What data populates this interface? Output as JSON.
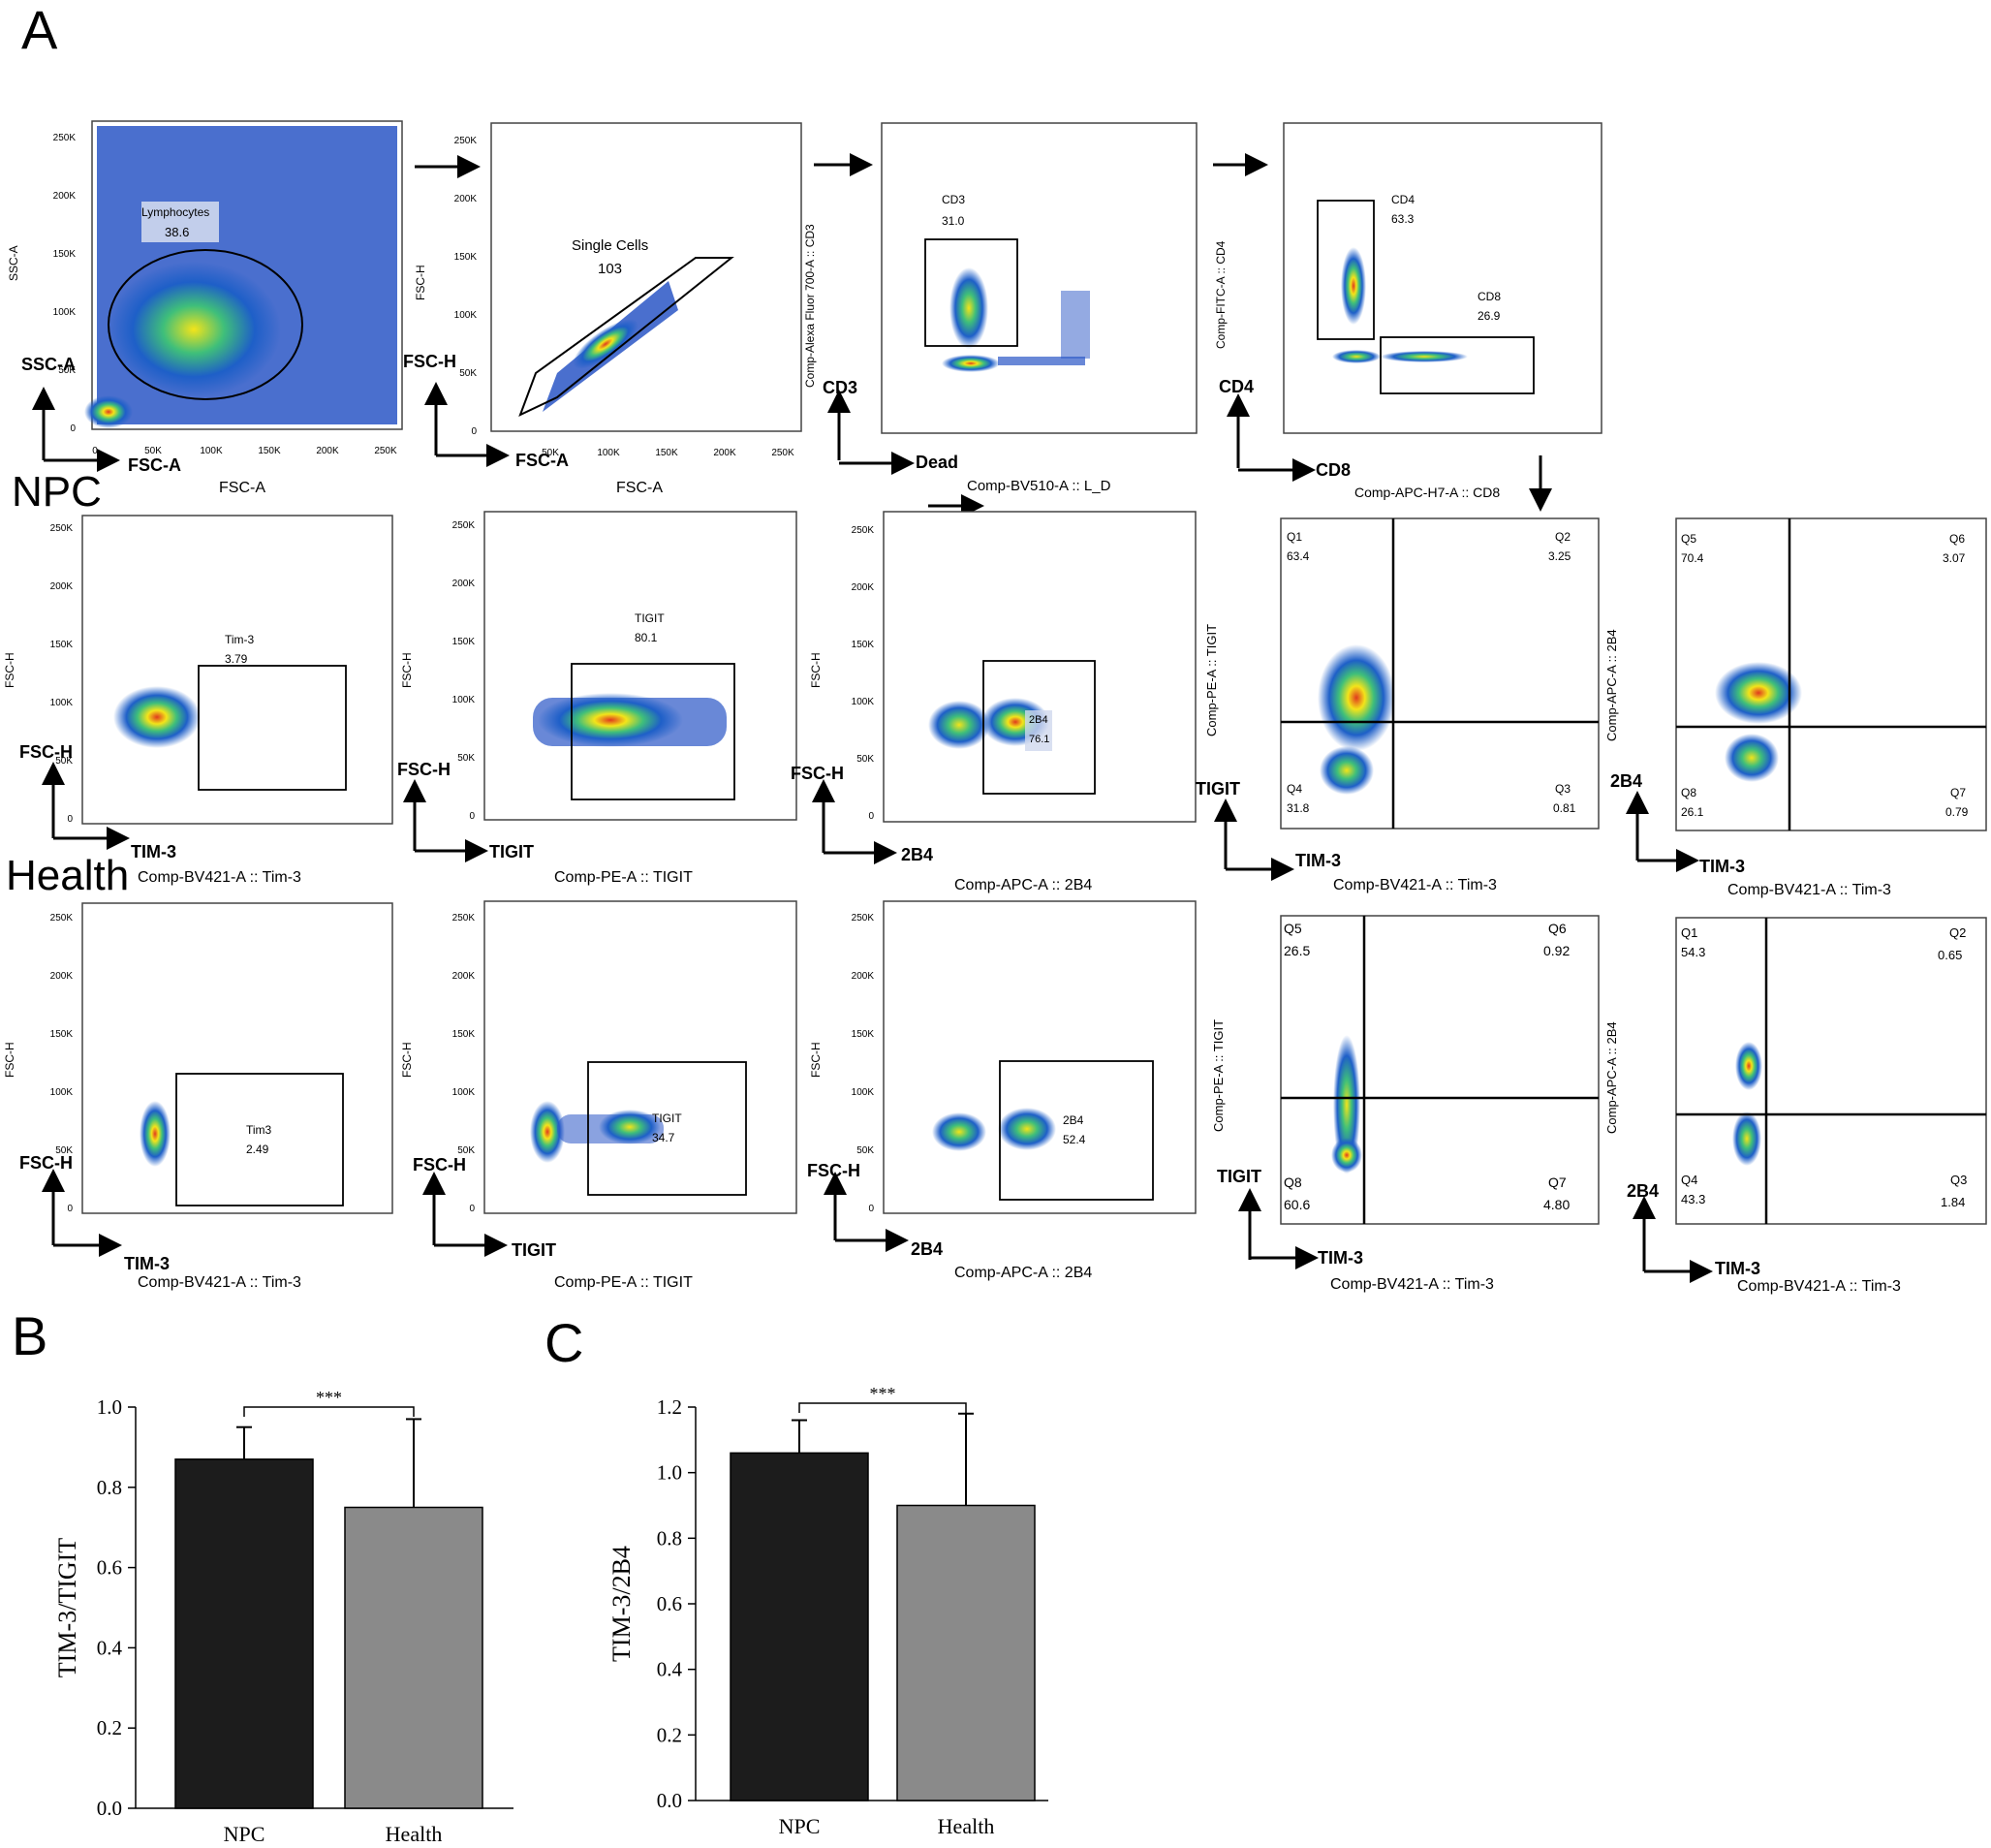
{
  "panel_letters": {
    "a": "A",
    "b": "B",
    "c": "C"
  },
  "row_labels": {
    "npc": "NPC",
    "health": "Health"
  },
  "gating": [
    {
      "title_left": "SSC-A",
      "xlabel": "FSC-A",
      "arrow_x": "FSC-A",
      "arrow_y": "SSC-A",
      "yticks": [
        "0",
        "50K",
        "100K",
        "150K",
        "200K",
        "250K"
      ],
      "xticks": [
        "0",
        "50K",
        "100K",
        "150K",
        "200K",
        "250K"
      ],
      "gate": {
        "name": "Lymphocytes",
        "value": "38.6"
      }
    },
    {
      "title_left": "FSC-H",
      "xlabel": "FSC-A",
      "arrow_x": "FSC-A",
      "arrow_y": "FSC-H",
      "yticks": [
        "0",
        "50K",
        "100K",
        "150K",
        "200K",
        "250K"
      ],
      "xticks": [
        "50K",
        "100K",
        "150K",
        "200K",
        "250K"
      ],
      "gate": {
        "name": "Single Cells",
        "value": "103"
      }
    },
    {
      "title_left": "Comp-Alexa Fluor 700-A :: CD3",
      "xlabel": "Comp-BV510-A :: L_D",
      "arrow_x": "Dead",
      "arrow_y": "CD3",
      "gate": {
        "name": "CD3",
        "value": "31.0"
      }
    },
    {
      "title_left": "Comp-FITC-A :: CD4",
      "xlabel": "Comp-APC-H7-A :: CD8",
      "arrow_x": "CD8",
      "arrow_y": "CD4",
      "gates": [
        {
          "name": "CD4",
          "value": "63.3"
        },
        {
          "name": "CD8",
          "value": "26.9"
        }
      ]
    }
  ],
  "fsc_rows": {
    "npc": [
      {
        "ylabel": "FSC-H",
        "xlabel": "Comp-BV421-A :: Tim-3",
        "arrow_x": "TIM-3",
        "arrow_y": "FSC-H",
        "gate": "Tim-3",
        "value": "3.79"
      },
      {
        "ylabel": "FSC-H",
        "xlabel": "Comp-PE-A :: TIGIT",
        "arrow_x": "TIGIT",
        "arrow_y": "FSC-H",
        "gate": "TIGIT",
        "value": "80.1"
      },
      {
        "ylabel": "FSC-H",
        "xlabel": "Comp-APC-A :: 2B4",
        "arrow_x": "2B4",
        "arrow_y": "FSC-H",
        "gate": "2B4",
        "value": "76.1"
      }
    ],
    "health": [
      {
        "ylabel": "FSC-H",
        "xlabel": "Comp-BV421-A :: Tim-3",
        "arrow_x": "TIM-3",
        "arrow_y": "FSC-H",
        "gate": "Tim3",
        "value": "2.49"
      },
      {
        "ylabel": "FSC-H",
        "xlabel": "Comp-PE-A :: TIGIT",
        "arrow_x": "TIGIT",
        "arrow_y": "FSC-H",
        "gate": "TIGIT",
        "value": "34.7"
      },
      {
        "ylabel": "FSC-H",
        "xlabel": "Comp-APC-A :: 2B4",
        "arrow_x": "2B4",
        "arrow_y": "FSC-H",
        "gate": "2B4",
        "value": "52.4"
      }
    ],
    "yticks": [
      "0",
      "50K",
      "100K",
      "150K",
      "200K",
      "250K"
    ]
  },
  "quadrants": {
    "npc_tigit": {
      "ylabel": "Comp-PE-A :: TIGIT",
      "xlabel": "Comp-BV421-A :: Tim-3",
      "arrow_x": "TIM-3",
      "arrow_y": "TIGIT",
      "ul": [
        "Q1",
        "63.4"
      ],
      "ur": [
        "Q2",
        "3.25"
      ],
      "ll": [
        "Q4",
        "31.8"
      ],
      "lr": [
        "Q3",
        "0.81"
      ]
    },
    "npc_2b4": {
      "ylabel": "Comp-APC-A :: 2B4",
      "xlabel": "Comp-BV421-A :: Tim-3",
      "arrow_x": "TIM-3",
      "arrow_y": "2B4",
      "ul": [
        "Q5",
        "70.4"
      ],
      "ur": [
        "Q6",
        "3.07"
      ],
      "ll": [
        "Q8",
        "26.1"
      ],
      "lr": [
        "Q7",
        "0.79"
      ]
    },
    "health_tigit": {
      "ylabel": "Comp-PE-A :: TIGIT",
      "xlabel": "Comp-BV421-A :: Tim-3",
      "arrow_x": "TIM-3",
      "arrow_y": "TIGIT",
      "ul": [
        "Q5",
        "26.5"
      ],
      "ur": [
        "Q6",
        "0.92"
      ],
      "ll": [
        "Q8",
        "60.6"
      ],
      "lr": [
        "Q7",
        "4.80"
      ]
    },
    "health_2b4": {
      "ylabel": "Comp-APC-A :: 2B4",
      "xlabel": "Comp-BV421-A :: Tim-3",
      "arrow_x": "TIM-3",
      "arrow_y": "2B4",
      "ul": [
        "Q1",
        "54.3"
      ],
      "ur": [
        "Q2",
        "0.65"
      ],
      "ll": [
        "Q4",
        "43.3"
      ],
      "lr": [
        "Q3",
        "1.84"
      ]
    }
  },
  "significance": "***",
  "chart_data": [
    {
      "type": "bar",
      "panel": "B",
      "categories": [
        "NPC",
        "Health"
      ],
      "values": [
        0.87,
        0.75
      ],
      "errors": [
        0.08,
        0.22
      ],
      "ylabel": "TIM-3/TIGIT",
      "ylim": [
        0,
        1.0
      ],
      "yticks": [
        "0.0",
        "0.2",
        "0.4",
        "0.6",
        "0.8",
        "1.0"
      ],
      "colors": [
        "#1c1c1c",
        "#8a8a8a"
      ]
    },
    {
      "type": "bar",
      "panel": "C",
      "categories": [
        "NPC",
        "Health"
      ],
      "values": [
        1.06,
        0.9
      ],
      "errors": [
        0.1,
        0.28
      ],
      "ylabel": "TIM-3/2B4",
      "ylim": [
        0,
        1.2
      ],
      "yticks": [
        "0.0",
        "0.2",
        "0.4",
        "0.6",
        "0.8",
        "1.0",
        "1.2"
      ],
      "colors": [
        "#1c1c1c",
        "#8a8a8a"
      ]
    }
  ]
}
